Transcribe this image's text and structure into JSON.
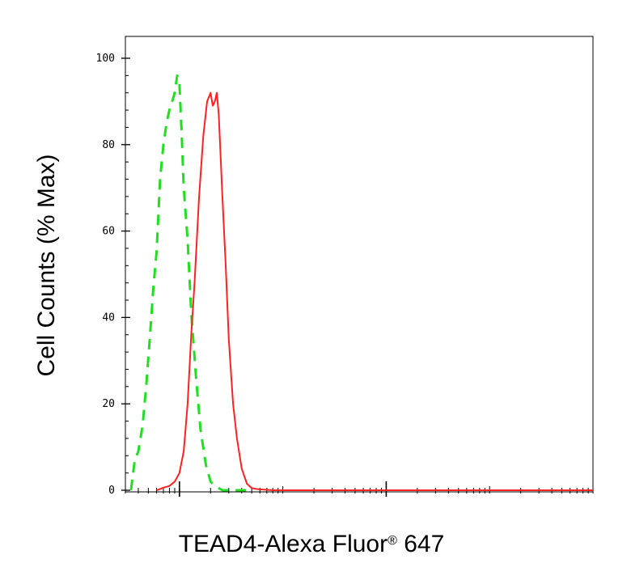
{
  "chart_data": {
    "type": "line",
    "title": "",
    "xlabel": "TEAD4-Alexa Fluor",
    "xlabel_mark": "®",
    "xlabel_suffix": " 647",
    "ylabel": "Cell Counts (% Max)",
    "x_scale": "log",
    "xlim": [
      0.3,
      10000
    ],
    "ylim": [
      0,
      100
    ],
    "y_ticks": [
      0,
      20,
      40,
      60,
      80,
      100
    ],
    "y_tick_labels": [
      "0",
      "20",
      "40",
      "60",
      "80",
      "100"
    ],
    "x_major_ticks": [
      1,
      100
    ],
    "x_tick_labels": [],
    "grid": false,
    "legend": "none",
    "series": [
      {
        "style": "dashed",
        "color": "#22dd22",
        "x": [
          0.34,
          0.37,
          0.4,
          0.44,
          0.48,
          0.52,
          0.56,
          0.6,
          0.65,
          0.7,
          0.75,
          0.8,
          0.85,
          0.9,
          0.95,
          1.0,
          1.05,
          1.1,
          1.2,
          1.3,
          1.45,
          1.6,
          1.8,
          2.0,
          2.2,
          2.4,
          2.6,
          3.0,
          3.5,
          4.0,
          5.0
        ],
        "y": [
          0,
          7,
          9,
          15,
          25,
          36,
          47,
          55,
          72,
          80,
          85,
          88,
          90,
          92,
          96,
          94,
          83,
          70,
          58,
          41,
          26,
          14,
          6,
          2,
          1,
          0.5,
          0,
          0,
          0,
          0,
          0
        ]
      },
      {
        "style": "solid",
        "color": "#ff2222",
        "x": [
          0.6,
          0.65,
          0.7,
          0.8,
          0.9,
          1.0,
          1.1,
          1.2,
          1.3,
          1.4,
          1.55,
          1.7,
          1.85,
          2.0,
          2.1,
          2.2,
          2.3,
          2.4,
          2.6,
          2.8,
          3.0,
          3.3,
          3.6,
          4.0,
          4.5,
          5.0,
          5.5,
          6.0,
          7.0,
          8.0,
          10,
          30,
          100,
          1000,
          10000
        ],
        "y": [
          0,
          0.3,
          0.6,
          1,
          2,
          4,
          9,
          20,
          36,
          48,
          68,
          82,
          90,
          92,
          89,
          90,
          92,
          87,
          68,
          52,
          35,
          20,
          12,
          5,
          1.5,
          0.5,
          0.3,
          0.2,
          0.1,
          0,
          0,
          0,
          0,
          0,
          0
        ]
      }
    ]
  }
}
